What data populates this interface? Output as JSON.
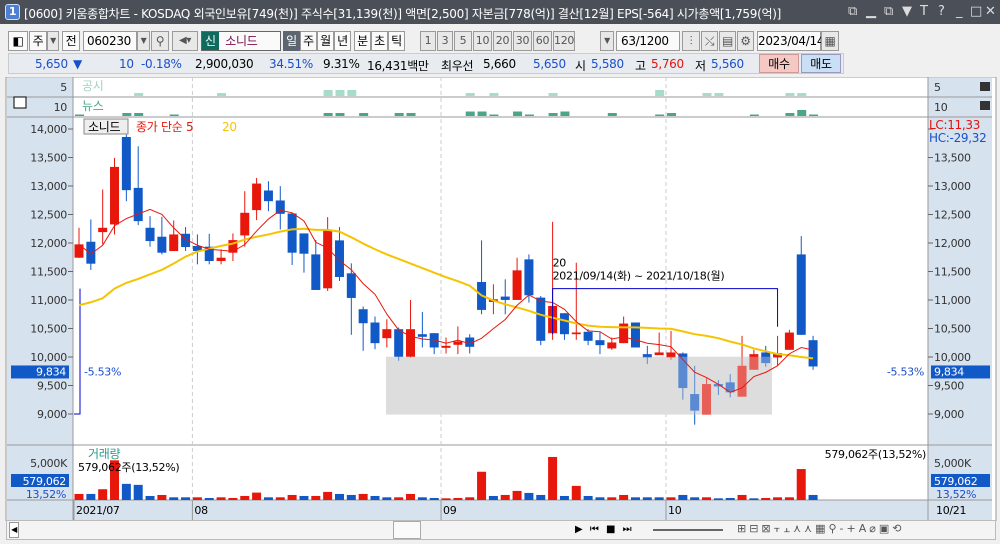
{
  "window": {
    "badge": "1",
    "title": "[0600] 키움종합차트 - KOSDAQ 외국인보유[749(천)] 주식수[31,139(천)] 액면[2,500] 자본금[778(억)] 결산[12월] EPS[-564] 시가총액[1,759(억)]"
  },
  "toolbar": {
    "period_type": "주",
    "prev_label": "전",
    "code": "060230",
    "new_badge": "신",
    "stock_name": "소니드",
    "periods": [
      "일",
      "주",
      "월",
      "년",
      "분",
      "초",
      "틱"
    ],
    "selected_period": "일",
    "intervals": [
      "1",
      "3",
      "5",
      "10",
      "20",
      "30",
      "60",
      "120"
    ],
    "count": "63",
    "count_total": "/1200",
    "date": "2023/04/14"
  },
  "info": {
    "price": "5,650",
    "arrow": "▼",
    "change": "10",
    "change_pct": "-0.18%",
    "volume": "2,900,030",
    "vol_ratio": "34.51%",
    "turnover": "9.31%",
    "amount": "16,431백만",
    "best_label": "최우선",
    "ask": "5,660",
    "bid": "5,650",
    "open_label": "시",
    "open": "5,580",
    "high_label": "고",
    "high": "5,760",
    "low_label": "저",
    "low": "5,560",
    "buy_label": "매수",
    "sell_label": "매도"
  },
  "panels": {
    "gongsi": {
      "label": "공시",
      "axis": "5"
    },
    "news": {
      "label": "뉴스",
      "axis": "10"
    },
    "main": {
      "name_tag": "소니드",
      "ma_label": "종가 단순 5",
      "ma_label2": "20",
      "lc": "LC:11,33",
      "hc": "HC:-29,32",
      "current": "9,834",
      "current_pct": "-5.53%"
    },
    "volume": {
      "label": "거래량",
      "value": "579,062주(13,52%)",
      "value_right": "579,062주(13,52%)",
      "axis_tick": "5,000K",
      "current": "579,062",
      "current_pct": "13,52%"
    }
  },
  "annotation": {
    "count": "20",
    "range": "2021/09/14(화) ~ 2021/10/18(월)"
  },
  "colors": {
    "up": "#e8170c",
    "down": "#1259c8",
    "ma5": "#e8170c",
    "ma20": "#f5c400",
    "box": "#d9d9d9",
    "axis_bg": "#d7e2ef"
  },
  "chart_data": {
    "type": "candlestick",
    "ylim": [
      8700,
      14200
    ],
    "y_ticks": [
      9000,
      9500,
      10000,
      10500,
      11000,
      11500,
      12000,
      12500,
      13000,
      13500,
      14000
    ],
    "y_tick_labels": [
      "9,000",
      "9,500",
      "10,000",
      "10,500",
      "11,000",
      "11,500",
      "12,000",
      "12,500",
      "13,000",
      "13,500",
      "14,000"
    ],
    "x_labels": [
      {
        "i": 0,
        "label": "2021/07"
      },
      {
        "i": 10,
        "label": "08"
      },
      {
        "i": 31,
        "label": "09"
      },
      {
        "i": 50,
        "label": "10"
      }
    ],
    "x_right_label": "10/21",
    "ohlc": [
      [
        11742,
        12267,
        11740,
        11976
      ],
      [
        12022,
        12413,
        11526,
        11637
      ],
      [
        12191,
        12938,
        11976,
        12267
      ],
      [
        12326,
        13492,
        12150,
        13335
      ],
      [
        13860,
        13900,
        12734,
        12927
      ],
      [
        12967,
        13697,
        12314,
        12384
      ],
      [
        12267,
        12471,
        11935,
        12034
      ],
      [
        12110,
        12460,
        11800,
        11830
      ],
      [
        11859,
        12396,
        11859,
        12150
      ],
      [
        12162,
        12279,
        11859,
        11929
      ],
      [
        11947,
        12150,
        11626,
        11859
      ],
      [
        11935,
        12162,
        11626,
        11684
      ],
      [
        11684,
        11888,
        11626,
        11742
      ],
      [
        11830,
        12168,
        11684,
        12051
      ],
      [
        12133,
        12909,
        11935,
        12530
      ],
      [
        12577,
        13142,
        12402,
        13043
      ],
      [
        12921,
        13084,
        12559,
        12734
      ],
      [
        12746,
        12997,
        12238,
        12512
      ],
      [
        12518,
        12530,
        11614,
        11830
      ],
      [
        12168,
        12168,
        11480,
        11812
      ],
      [
        11800,
        12051,
        11176,
        11176
      ],
      [
        11205,
        12454,
        11159,
        12227
      ],
      [
        12046,
        12279,
        11334,
        11404
      ],
      [
        11468,
        11643,
        10389,
        11036
      ],
      [
        10838,
        10885,
        10109,
        10593
      ],
      [
        10605,
        10710,
        10138,
        10243
      ],
      [
        10330,
        10663,
        10167,
        10488
      ],
      [
        10488,
        10517,
        9934,
        10004
      ],
      [
        10004,
        11001,
        9992,
        10488
      ],
      [
        10400,
        10791,
        10167,
        10354
      ],
      [
        10418,
        10418,
        10050,
        10167
      ],
      [
        10161,
        10342,
        10062,
        10196
      ],
      [
        10214,
        10535,
        10050,
        10272
      ],
      [
        10342,
        10400,
        10062,
        10179
      ],
      [
        11316,
        12046,
        10750,
        10826
      ],
      [
        10966,
        11275,
        10750,
        11013
      ],
      [
        11060,
        11363,
        10750,
        11001
      ],
      [
        11001,
        11742,
        11001,
        11520
      ],
      [
        11713,
        11800,
        10955,
        11083
      ],
      [
        11042,
        11071,
        10208,
        10284
      ],
      [
        10418,
        12372,
        10301,
        10896
      ],
      [
        10768,
        10768,
        10301,
        10400
      ],
      [
        10400,
        11655,
        10301,
        10430
      ],
      [
        10442,
        10488,
        10208,
        10284
      ],
      [
        10295,
        10430,
        10050,
        10208
      ],
      [
        10150,
        10342,
        10126,
        10255
      ],
      [
        10243,
        10710,
        10243,
        10587
      ],
      [
        10605,
        10605,
        10167,
        10167
      ],
      [
        10050,
        10196,
        9875,
        9992
      ],
      [
        10033,
        10430,
        10033,
        10080
      ],
      [
        9992,
        10459,
        9951,
        10080
      ],
      [
        10062,
        10080,
        9251,
        9455
      ],
      [
        9350,
        9846,
        8813,
        9059
      ],
      [
        8989,
        9630,
        8989,
        9525
      ],
      [
        9525,
        9595,
        9333,
        9484
      ],
      [
        9555,
        9700,
        9292,
        9380
      ],
      [
        9304,
        10371,
        9304,
        9846
      ],
      [
        9776,
        10126,
        9776,
        10050
      ],
      [
        10080,
        10196,
        9829,
        9893
      ],
      [
        9992,
        10371,
        9858,
        10068
      ],
      [
        10126,
        10476,
        10126,
        10429
      ],
      [
        11800,
        12121,
        10389,
        10389
      ],
      [
        10295,
        10371,
        9776,
        9834
      ]
    ],
    "ma20": [
      10908,
      10960,
      11030,
      11200,
      11300,
      11370,
      11450,
      11530,
      11640,
      11760,
      11850,
      11900,
      11950,
      11990,
      12060,
      12110,
      12150,
      12200,
      12240,
      12250,
      12230,
      12230,
      12200,
      12100,
      11990,
      11890,
      11800,
      11720,
      11640,
      11560,
      11480,
      11400,
      11330,
      11250,
      11080,
      10990,
      10925,
      10870,
      10810,
      10740,
      10690,
      10640,
      10590,
      10550,
      10530,
      10525,
      10520,
      10520,
      10510,
      10500,
      10495,
      10450,
      10400,
      10370,
      10330,
      10270,
      10220,
      10150,
      10100,
      10050,
      10030,
      10000,
      9975
    ],
    "volume_k": [
      818,
      818,
      1454,
      5364,
      2182,
      2045,
      545,
      682,
      364,
      364,
      364,
      273,
      364,
      273,
      545,
      1000,
      364,
      364,
      682,
      545,
      545,
      1091,
      818,
      682,
      818,
      545,
      364,
      364,
      818,
      364,
      273,
      227,
      273,
      364,
      3818,
      545,
      682,
      1227,
      955,
      682,
      5818,
      545,
      1909,
      545,
      364,
      364,
      682,
      364,
      364,
      364,
      364,
      682,
      364,
      364,
      227,
      273,
      682,
      227,
      273,
      364,
      364,
      4182,
      682
    ],
    "volume_up": [
      1,
      0,
      1,
      1,
      0,
      0,
      0,
      1,
      0,
      0,
      1,
      0,
      1,
      1,
      1,
      1,
      0,
      1,
      1,
      0,
      1,
      1,
      0,
      0,
      1,
      0,
      0,
      1,
      1,
      0,
      0,
      1,
      1,
      1,
      1,
      0,
      1,
      1,
      0,
      0,
      1,
      0,
      1,
      0,
      0,
      1,
      1,
      0,
      0,
      0,
      1,
      0,
      0,
      1,
      0,
      0,
      1,
      0,
      1,
      1,
      1,
      1,
      0
    ],
    "volume_ylim": [
      0,
      5000
    ],
    "gongsi_marks": [
      [
        5,
        1
      ],
      [
        12,
        1
      ],
      [
        21,
        2
      ],
      [
        22,
        2
      ],
      [
        23,
        2
      ],
      [
        33,
        1
      ],
      [
        35,
        1
      ],
      [
        40,
        1
      ],
      [
        49,
        2
      ],
      [
        53,
        1
      ],
      [
        54,
        1
      ],
      [
        60,
        1
      ],
      [
        61,
        1
      ]
    ],
    "news_marks": [
      [
        0,
        1
      ],
      [
        4,
        2
      ],
      [
        5,
        2
      ],
      [
        8,
        1
      ],
      [
        21,
        2
      ],
      [
        22,
        2
      ],
      [
        24,
        2
      ],
      [
        27,
        2
      ],
      [
        28,
        2
      ],
      [
        33,
        3
      ],
      [
        34,
        3
      ],
      [
        35,
        1
      ],
      [
        37,
        3
      ],
      [
        38,
        1
      ],
      [
        40,
        2
      ],
      [
        41,
        3
      ],
      [
        45,
        2
      ],
      [
        49,
        1
      ],
      [
        50,
        2
      ],
      [
        57,
        1
      ],
      [
        60,
        2
      ],
      [
        61,
        4
      ],
      [
        62,
        1
      ]
    ],
    "box_range": {
      "from": 28,
      "to": 59,
      "low": 8990,
      "high": 10004
    },
    "period_marker": {
      "from": 40,
      "to": 59
    }
  }
}
